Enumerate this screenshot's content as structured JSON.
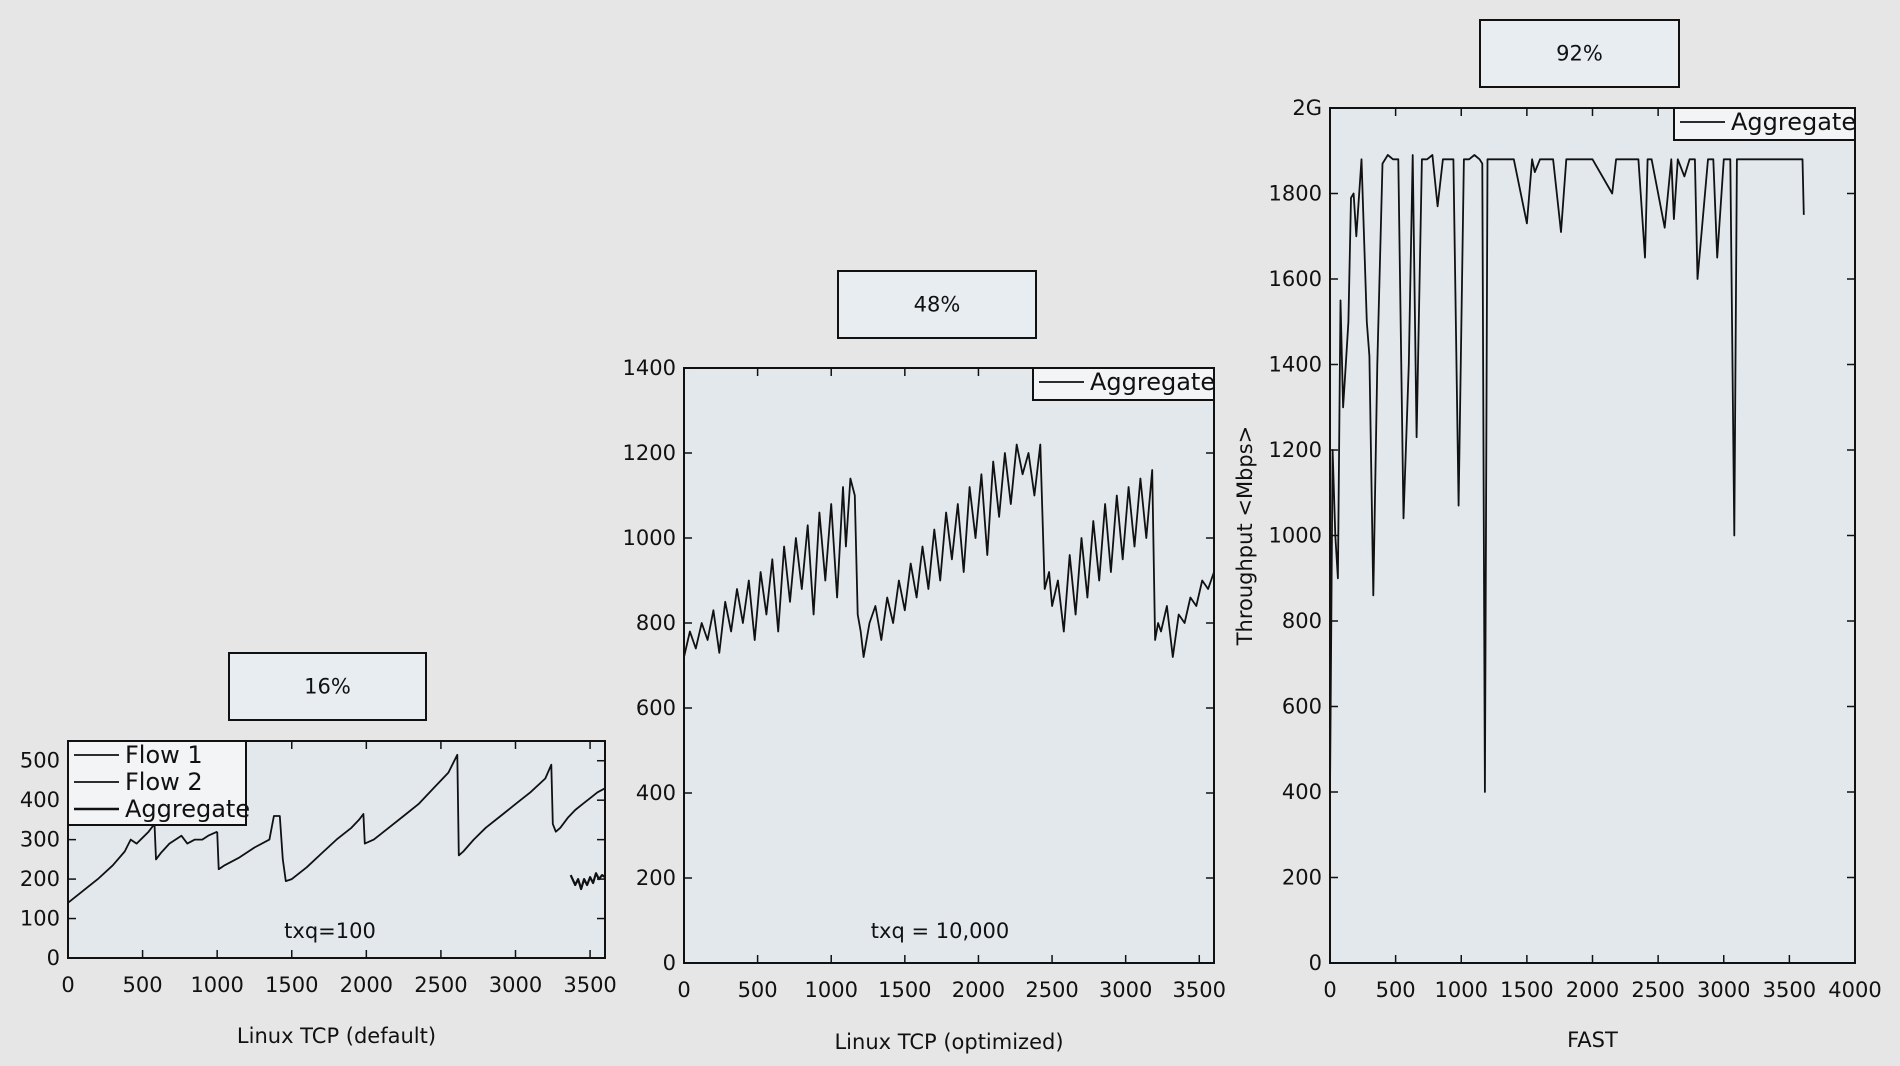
{
  "chart_data": [
    {
      "type": "line",
      "badge": "16%",
      "annotation": "txq=100",
      "xlabel": "Linux TCP (default)",
      "ylabel": "",
      "xlim": [
        0,
        3600
      ],
      "ylim": [
        0,
        550
      ],
      "xticks": [
        0,
        500,
        1000,
        1500,
        2000,
        2500,
        3000,
        3500
      ],
      "yticks": [
        0,
        100,
        200,
        300,
        400,
        500
      ],
      "xtick_labels": [
        "0",
        "500",
        "1000",
        "1500",
        "2000",
        "2500",
        "3000",
        "3500"
      ],
      "ytick_labels": [
        "0",
        "100",
        "200",
        "300",
        "400",
        "500"
      ],
      "legend": {
        "placement": "top-left",
        "entries": [
          "Flow 1",
          "Flow 2",
          "Aggregate"
        ]
      },
      "series": [
        {
          "name": "Flow 1",
          "x": [
            0,
            100,
            200,
            300,
            380,
            420,
            460,
            500,
            540,
            580,
            590,
            620,
            680,
            760,
            800,
            850,
            900,
            940,
            1000
          ],
          "y": [
            140,
            170,
            200,
            235,
            270,
            300,
            290,
            305,
            320,
            340,
            250,
            265,
            290,
            310,
            290,
            300,
            300,
            310,
            320
          ]
        },
        {
          "name": "Flow 2",
          "x": [
            1000,
            1010,
            1050,
            1150,
            1250,
            1350,
            1380,
            1420,
            1440,
            1460,
            1500,
            1600,
            1700,
            1800,
            1900,
            1950,
            1980,
            1990,
            2050,
            2150,
            2250,
            2350,
            2450,
            2550,
            2610,
            2620,
            2650,
            2720,
            2800,
            2900,
            3000,
            3100,
            3200,
            3240,
            3250,
            3270,
            3300,
            3350,
            3400,
            3450,
            3500,
            3550,
            3600
          ],
          "y": [
            320,
            225,
            235,
            255,
            280,
            300,
            360,
            360,
            250,
            195,
            200,
            230,
            265,
            300,
            330,
            350,
            365,
            290,
            300,
            330,
            360,
            390,
            430,
            470,
            515,
            260,
            270,
            300,
            330,
            360,
            390,
            420,
            455,
            490,
            340,
            320,
            330,
            355,
            375,
            390,
            405,
            420,
            430
          ]
        },
        {
          "name": "Aggregate",
          "x": [
            3370,
            3400,
            3420,
            3440,
            3460,
            3480,
            3500,
            3520,
            3540,
            3560,
            3580,
            3600
          ],
          "y": [
            210,
            185,
            200,
            175,
            200,
            185,
            205,
            190,
            215,
            200,
            210,
            205
          ]
        }
      ]
    },
    {
      "type": "line",
      "badge": "48%",
      "annotation": "txq = 10,000",
      "xlabel": "Linux TCP (optimized)",
      "ylabel": "",
      "xlim": [
        0,
        3600
      ],
      "ylim": [
        0,
        1400
      ],
      "xticks": [
        0,
        500,
        1000,
        1500,
        2000,
        2500,
        3000,
        3500
      ],
      "yticks": [
        0,
        200,
        400,
        600,
        800,
        1000,
        1200,
        1400
      ],
      "xtick_labels": [
        "0",
        "500",
        "1000",
        "1500",
        "2000",
        "2500",
        "3000",
        "3500"
      ],
      "ytick_labels": [
        "0",
        "200",
        "400",
        "600",
        "800",
        "1000",
        "1200",
        "1400"
      ],
      "legend": {
        "placement": "top-right",
        "entries": [
          "Aggregate"
        ]
      },
      "series": [
        {
          "name": "Aggregate",
          "x": [
            0,
            40,
            80,
            120,
            160,
            200,
            240,
            280,
            320,
            360,
            400,
            440,
            480,
            520,
            560,
            600,
            640,
            680,
            720,
            760,
            800,
            840,
            880,
            920,
            960,
            1000,
            1040,
            1080,
            1100,
            1130,
            1160,
            1180,
            1200,
            1220,
            1260,
            1300,
            1340,
            1380,
            1420,
            1460,
            1500,
            1540,
            1580,
            1620,
            1660,
            1700,
            1740,
            1780,
            1820,
            1860,
            1900,
            1940,
            1980,
            2020,
            2060,
            2100,
            2140,
            2180,
            2220,
            2260,
            2300,
            2340,
            2380,
            2420,
            2450,
            2480,
            2500,
            2540,
            2580,
            2620,
            2660,
            2700,
            2740,
            2780,
            2820,
            2860,
            2900,
            2940,
            2980,
            3020,
            3060,
            3100,
            3140,
            3180,
            3200,
            3220,
            3240,
            3280,
            3320,
            3360,
            3400,
            3440,
            3480,
            3520,
            3560,
            3600
          ],
          "y": [
            720,
            780,
            740,
            800,
            760,
            830,
            730,
            850,
            780,
            880,
            800,
            900,
            760,
            920,
            820,
            950,
            780,
            980,
            850,
            1000,
            880,
            1030,
            820,
            1060,
            900,
            1080,
            860,
            1120,
            980,
            1140,
            1100,
            820,
            780,
            720,
            800,
            840,
            760,
            860,
            800,
            900,
            830,
            940,
            860,
            980,
            880,
            1020,
            900,
            1060,
            950,
            1080,
            920,
            1120,
            1000,
            1150,
            960,
            1180,
            1050,
            1200,
            1080,
            1220,
            1150,
            1200,
            1100,
            1220,
            880,
            920,
            840,
            900,
            780,
            960,
            820,
            1000,
            860,
            1040,
            900,
            1080,
            920,
            1100,
            950,
            1120,
            980,
            1140,
            1000,
            1160,
            760,
            800,
            780,
            840,
            720,
            820,
            800,
            860,
            840,
            900,
            880,
            920
          ]
        }
      ]
    },
    {
      "type": "line",
      "badge": "92%",
      "annotation": "",
      "xlabel": "FAST",
      "ylabel": "Throughput <Mbps>",
      "xlim": [
        0,
        4000
      ],
      "ylim": [
        0,
        2000
      ],
      "xticks": [
        0,
        500,
        1000,
        1500,
        2000,
        2500,
        3000,
        3500,
        4000
      ],
      "yticks": [
        0,
        200,
        400,
        600,
        800,
        1000,
        1200,
        1400,
        1600,
        1800,
        2000
      ],
      "xtick_labels": [
        "0",
        "500",
        "1000",
        "1500",
        "2000",
        "2500",
        "3000",
        "3500",
        "4000"
      ],
      "ytick_labels": [
        "0",
        "200",
        "400",
        "600",
        "800",
        "1000",
        "1200",
        "1400",
        "1600",
        "1800",
        "2G"
      ],
      "legend": {
        "placement": "top-right",
        "entries": [
          "Aggregate"
        ]
      },
      "series": [
        {
          "name": "Aggregate",
          "x": [
            0,
            20,
            40,
            60,
            80,
            100,
            120,
            140,
            160,
            180,
            200,
            240,
            280,
            300,
            330,
            360,
            400,
            440,
            480,
            520,
            560,
            600,
            630,
            660,
            700,
            740,
            780,
            820,
            860,
            900,
            940,
            980,
            1020,
            1060,
            1100,
            1140,
            1160,
            1180,
            1200,
            1220,
            1260,
            1400,
            1500,
            1540,
            1560,
            1600,
            1700,
            1760,
            1800,
            1820,
            2000,
            2150,
            2180,
            2200,
            2350,
            2400,
            2420,
            2450,
            2550,
            2600,
            2620,
            2650,
            2700,
            2740,
            2780,
            2800,
            2880,
            2920,
            2950,
            3000,
            3050,
            3080,
            3100,
            3130,
            3150,
            3180,
            3200,
            3260,
            3300,
            3320,
            3350,
            3600,
            3610
          ],
          "y": [
            400,
            1200,
            1000,
            900,
            1550,
            1300,
            1400,
            1500,
            1790,
            1800,
            1700,
            1880,
            1500,
            1420,
            860,
            1400,
            1870,
            1890,
            1880,
            1880,
            1040,
            1400,
            1890,
            1230,
            1880,
            1880,
            1890,
            1770,
            1880,
            1880,
            1880,
            1070,
            1880,
            1880,
            1890,
            1880,
            1870,
            400,
            1880,
            1880,
            1880,
            1880,
            1730,
            1880,
            1850,
            1880,
            1880,
            1710,
            1880,
            1880,
            1880,
            1800,
            1880,
            1880,
            1880,
            1650,
            1880,
            1880,
            1720,
            1880,
            1740,
            1880,
            1840,
            1880,
            1880,
            1600,
            1880,
            1880,
            1650,
            1880,
            1880,
            1000,
            1880,
            1880,
            1880,
            1880,
            1880,
            1880,
            1880,
            1880,
            1880,
            1880,
            1750
          ]
        }
      ]
    }
  ]
}
